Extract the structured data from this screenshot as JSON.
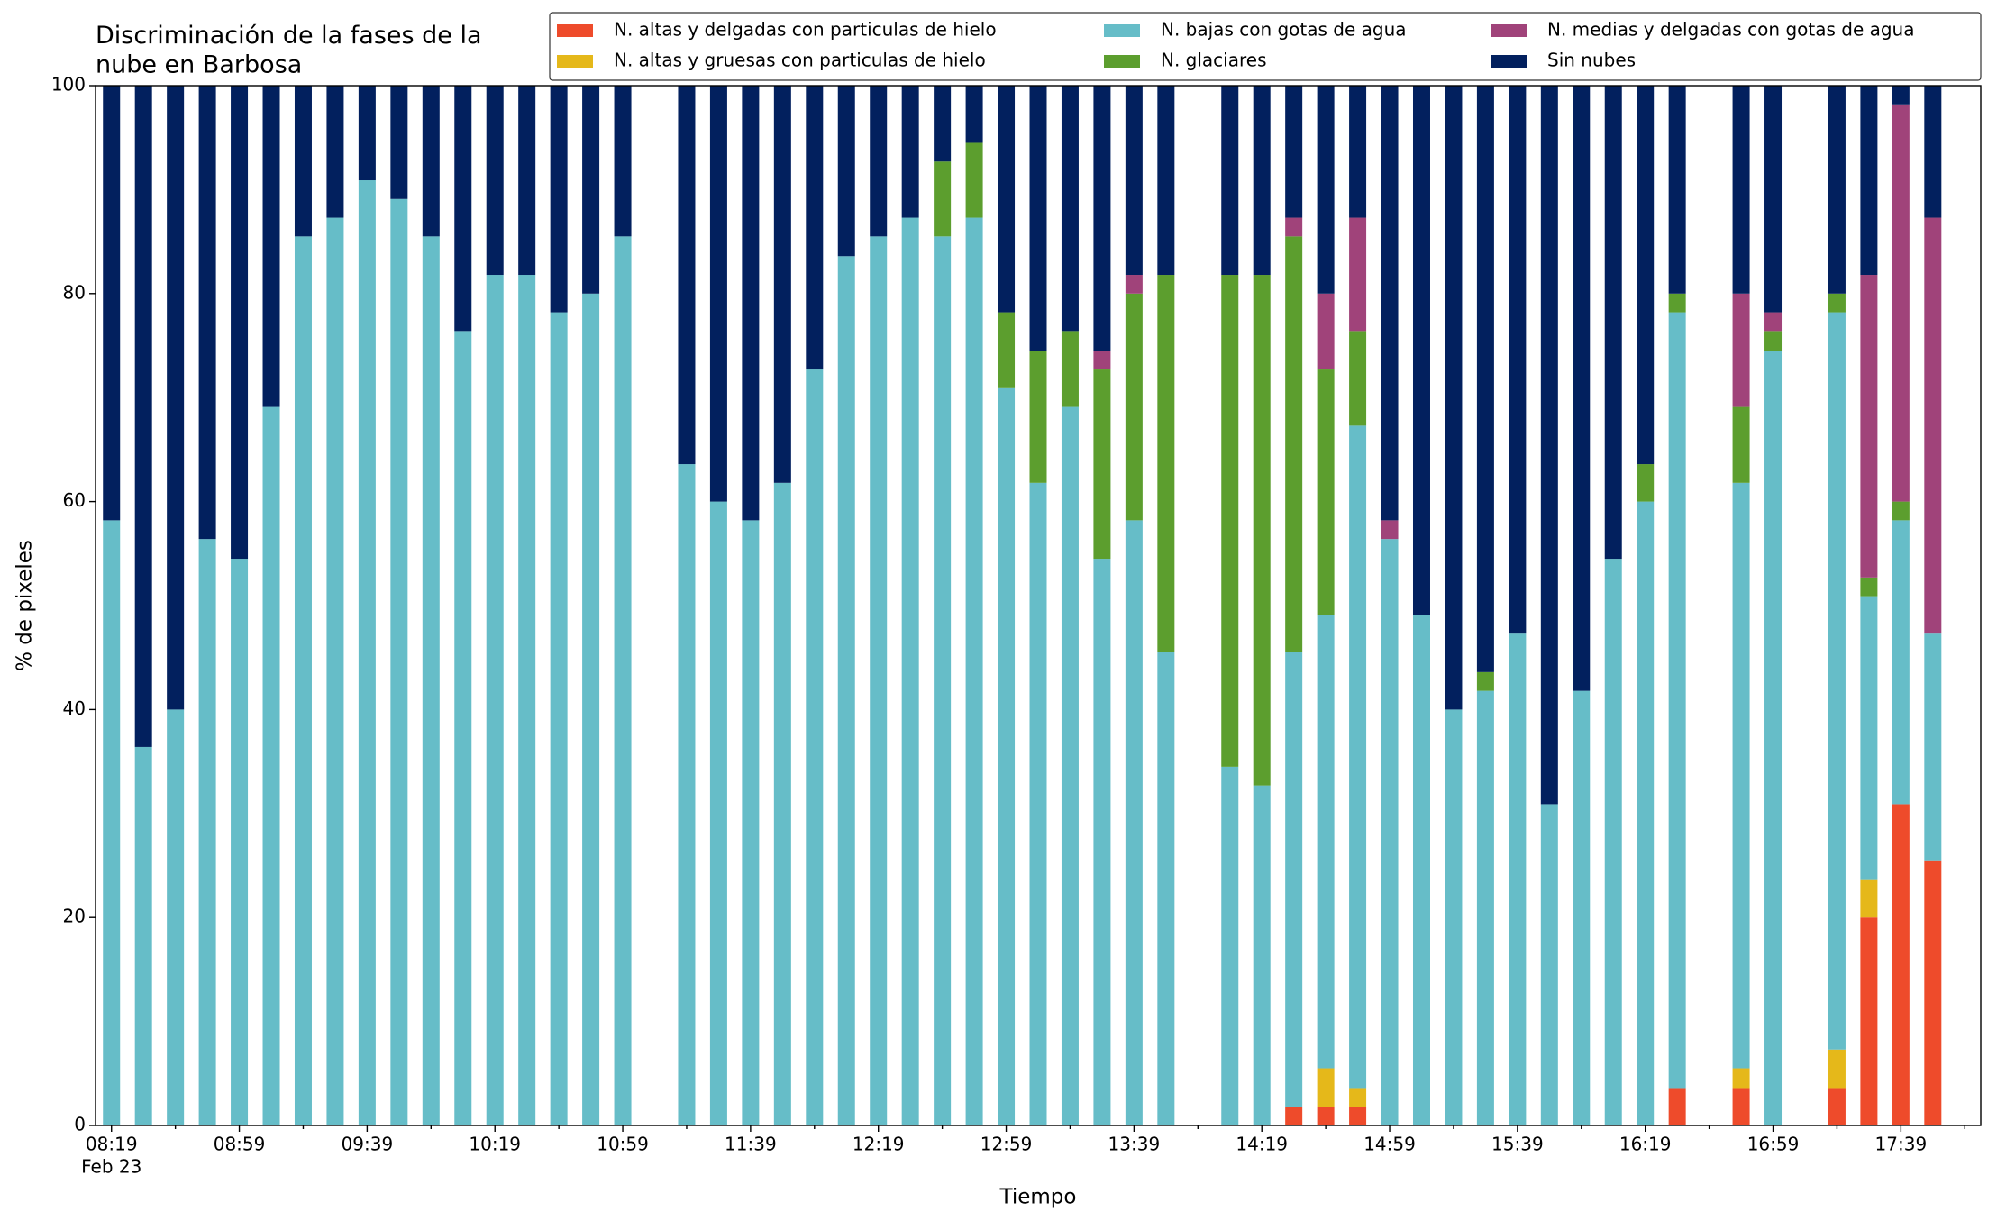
{
  "chart_data": {
    "type": "stacked_bar",
    "title": "Discriminación de la fases de la\nnube en Barbosa",
    "x_label": "Tiempo",
    "y_label": "% de pixeles",
    "date_label": "Feb 23",
    "x": [
      "08:19",
      "08:29",
      "08:39",
      "08:49",
      "08:59",
      "09:09",
      "09:19",
      "09:29",
      "09:39",
      "09:49",
      "09:59",
      "10:09",
      "10:19",
      "10:29",
      "10:39",
      "10:49",
      "10:59",
      "11:19",
      "11:29",
      "11:39",
      "11:49",
      "11:59",
      "12:09",
      "12:19",
      "12:29",
      "12:39",
      "12:49",
      "12:59",
      "13:09",
      "13:19",
      "13:29",
      "13:39",
      "13:49",
      "14:09",
      "14:19",
      "14:29",
      "14:39",
      "14:49",
      "14:59",
      "15:09",
      "15:19",
      "15:29",
      "15:39",
      "15:49",
      "15:59",
      "16:09",
      "16:19",
      "16:29",
      "16:49",
      "16:59",
      "17:19",
      "17:29",
      "17:39",
      "17:49"
    ],
    "series": [
      {
        "name": "N. altas y delgadas con particulas de hielo",
        "color": "#ee4b2b",
        "values": [
          0,
          0,
          0,
          0,
          0,
          0,
          0,
          0,
          0,
          0,
          0,
          0,
          0,
          0,
          0,
          0,
          0,
          0,
          0,
          0,
          0,
          0,
          0,
          0,
          0,
          0,
          0,
          0,
          0,
          0,
          0,
          0,
          0,
          0,
          0,
          1.8,
          1.8,
          1.8,
          0,
          0,
          0,
          0,
          0,
          0,
          0,
          0,
          0,
          3.6,
          3.6,
          0,
          3.6,
          20,
          30.9,
          25.5
        ]
      },
      {
        "name": "N. altas y gruesas con particulas de hielo",
        "color": "#e5b81a",
        "values": [
          0,
          0,
          0,
          0,
          0,
          0,
          0,
          0,
          0,
          0,
          0,
          0,
          0,
          0,
          0,
          0,
          0,
          0,
          0,
          0,
          0,
          0,
          0,
          0,
          0,
          0,
          0,
          0,
          0,
          0,
          0,
          0,
          0,
          0,
          0,
          0,
          3.7,
          1.8,
          0,
          0,
          0,
          0,
          0,
          0,
          0,
          0,
          0,
          0,
          1.9,
          0,
          3.7,
          3.6,
          0,
          0
        ]
      },
      {
        "name": "N. bajas con gotas de agua",
        "color": "#66bdc8",
        "values": [
          58.2,
          36.4,
          40,
          56.4,
          54.5,
          69.1,
          85.5,
          87.3,
          90.9,
          89.1,
          85.5,
          76.4,
          81.8,
          81.8,
          78.2,
          80,
          85.5,
          63.6,
          60,
          58.2,
          61.8,
          72.7,
          83.6,
          85.5,
          87.3,
          85.5,
          87.3,
          70.9,
          61.8,
          69.1,
          54.5,
          58.2,
          45.5,
          34.5,
          32.7,
          43.7,
          43.6,
          63.7,
          56.4,
          49.1,
          40,
          41.8,
          47.3,
          30.9,
          41.8,
          54.5,
          60,
          74.6,
          56.3,
          74.5,
          70.9,
          27.3,
          27.3,
          21.8
        ]
      },
      {
        "name": "N. glaciares",
        "color": "#5c9e2e",
        "values": [
          0,
          0,
          0,
          0,
          0,
          0,
          0,
          0,
          0,
          0,
          0,
          0,
          0,
          0,
          0,
          0,
          0,
          0,
          0,
          0,
          0,
          0,
          0,
          0,
          0,
          7.2,
          7.2,
          7.3,
          12.7,
          7.3,
          18.2,
          21.8,
          36.3,
          47.3,
          49.1,
          40,
          23.6,
          9.1,
          0,
          0,
          0,
          1.8,
          0,
          0,
          0,
          0,
          3.6,
          1.8,
          7.3,
          1.9,
          1.8,
          1.8,
          1.8,
          0
        ]
      },
      {
        "name": "N. medias y delgadas con gotas de agua",
        "color": "#a0437a",
        "values": [
          0,
          0,
          0,
          0,
          0,
          0,
          0,
          0,
          0,
          0,
          0,
          0,
          0,
          0,
          0,
          0,
          0,
          0,
          0,
          0,
          0,
          0,
          0,
          0,
          0,
          0,
          0,
          0,
          0,
          0,
          1.8,
          1.8,
          0,
          0,
          0,
          1.8,
          7.3,
          10.9,
          1.8,
          0,
          0,
          0,
          0,
          0,
          0,
          0,
          0,
          0,
          10.9,
          1.8,
          0,
          29.1,
          38.2,
          40
        ]
      },
      {
        "name": "Sin nubes",
        "color": "#02205e",
        "values": [
          41.8,
          63.6,
          60,
          43.6,
          45.5,
          30.9,
          14.5,
          12.7,
          9.1,
          10.9,
          14.5,
          23.6,
          18.2,
          18.2,
          21.8,
          20,
          14.5,
          36.4,
          40,
          41.8,
          38.2,
          27.3,
          16.4,
          14.5,
          12.7,
          7.3,
          5.5,
          21.8,
          25.5,
          23.6,
          25.5,
          18.2,
          18.2,
          18.2,
          18.2,
          12.7,
          20,
          12.7,
          41.8,
          50.9,
          60,
          56.4,
          52.7,
          69.1,
          58.2,
          45.5,
          36.4,
          20,
          20,
          21.8,
          20,
          18.2,
          1.8,
          12.7
        ]
      }
    ],
    "xlim": [
      "08:14",
      "18:04"
    ],
    "xticks": [
      "08:19",
      "08:59",
      "09:39",
      "10:19",
      "10:59",
      "11:39",
      "12:19",
      "12:59",
      "13:39",
      "14:19",
      "14:59",
      "15:39",
      "16:19",
      "16:59",
      "17:39"
    ],
    "xminorticks": [
      "08:39",
      "09:19",
      "09:59",
      "10:39",
      "11:19",
      "11:59",
      "12:39",
      "13:19",
      "13:59",
      "14:39",
      "15:19",
      "15:59",
      "16:39",
      "17:19",
      "17:59"
    ],
    "ylim": [
      0,
      100
    ],
    "yticks": [
      0,
      20,
      40,
      60,
      80,
      100
    ],
    "legend": "upper right"
  }
}
